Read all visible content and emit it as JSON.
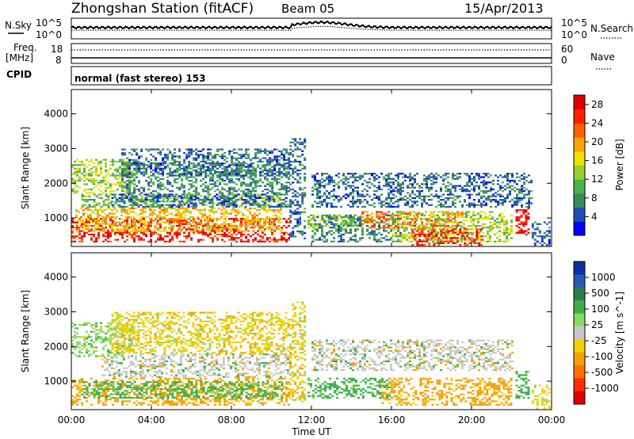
{
  "header": {
    "station": "Zhongshan Station (fitACF)",
    "beam": "Beam 05",
    "date": "15/Apr/2013"
  },
  "top_panels": {
    "nsky_label": "N.Sky",
    "nsky_ticks": [
      "10^5",
      "10^0"
    ],
    "nsearch_label": "N.Search",
    "nsearch_ticks": [
      "10^5",
      "10^0"
    ],
    "freq_label": "Freq.",
    "freq_unit": "[MHz]",
    "freq_ticks": [
      "18",
      "8"
    ],
    "nave_label": "Nave",
    "nave_ticks": [
      "60",
      "0"
    ],
    "cpid_label": "CPID",
    "cpid_text": "normal (fast stereo) 153"
  },
  "colors": {
    "power_scale": [
      "#0000ff",
      "#1f4fb5",
      "#3c8a5a",
      "#4caf50",
      "#9acd32",
      "#f0e000",
      "#ffa500",
      "#ff6000",
      "#ff2000",
      "#e00000"
    ],
    "velocity_scale": [
      "#1030a0",
      "#2858b0",
      "#2e7d4f",
      "#3fae49",
      "#8bd86a",
      "#c8c8c8",
      "#f0d000",
      "#f5a000",
      "#ff7000",
      "#ff3000",
      "#e00000"
    ]
  },
  "chart_data": [
    {
      "type": "heatmap",
      "panel": "power",
      "ylabel": "Slant Range [km]",
      "ylim": [
        180,
        4700
      ],
      "y_ticks": [
        "1000",
        "2000",
        "3000",
        "4000"
      ],
      "x_ticks": [
        "00:00",
        "04:00",
        "08:00",
        "12:00",
        "16:00",
        "20:00",
        "00:00"
      ],
      "colorbar": {
        "label": "Power [dB]",
        "ticks": [
          "4",
          "8",
          "12",
          "16",
          "20",
          "24",
          "28"
        ],
        "range": [
          0,
          30
        ]
      },
      "regions": [
        {
          "t0": 0.0,
          "t1": 10.9,
          "r0": 300,
          "r1": 1000,
          "level": 26
        },
        {
          "t0": 0.2,
          "t1": 10.5,
          "r0": 600,
          "r1": 1300,
          "level": 18
        },
        {
          "t0": 0.5,
          "t1": 10.8,
          "r0": 1300,
          "r1": 1700,
          "level": 12
        },
        {
          "t0": 2.0,
          "t1": 10.8,
          "r0": 1300,
          "r1": 1700,
          "level": 6
        },
        {
          "t0": 0.0,
          "t1": 3.0,
          "r0": 1700,
          "r1": 2700,
          "level": 14
        },
        {
          "t0": 2.5,
          "t1": 10.9,
          "r0": 1700,
          "r1": 2600,
          "level": 8
        },
        {
          "t0": 2.5,
          "t1": 10.9,
          "r0": 2200,
          "r1": 3000,
          "level": 6
        },
        {
          "t0": 10.9,
          "t1": 11.7,
          "r0": 400,
          "r1": 3300,
          "level": 6
        },
        {
          "t0": 11.8,
          "t1": 14.5,
          "r0": 700,
          "r1": 1100,
          "level": 14
        },
        {
          "t0": 12.0,
          "t1": 16.5,
          "r0": 300,
          "r1": 1100,
          "level": 8
        },
        {
          "t0": 14.5,
          "t1": 19.5,
          "r0": 700,
          "r1": 1200,
          "level": 22
        },
        {
          "t0": 16.0,
          "t1": 22.0,
          "r0": 300,
          "r1": 1200,
          "level": 14
        },
        {
          "t0": 17.0,
          "t1": 20.5,
          "r0": 200,
          "r1": 700,
          "level": 26
        },
        {
          "t0": 12.0,
          "t1": 23.0,
          "r0": 1300,
          "r1": 2300,
          "level": 6
        },
        {
          "t0": 22.2,
          "t1": 22.8,
          "r0": 500,
          "r1": 1300,
          "level": 28
        },
        {
          "t0": 23.0,
          "t1": 23.9,
          "r0": 200,
          "r1": 900,
          "level": 6
        }
      ]
    },
    {
      "type": "heatmap",
      "panel": "velocity",
      "ylabel": "Slant Range [km]",
      "ylim": [
        180,
        4700
      ],
      "y_ticks": [
        "1000",
        "2000",
        "3000",
        "4000"
      ],
      "x_ticks": [
        "00:00",
        "04:00",
        "08:00",
        "12:00",
        "16:00",
        "20:00",
        "00:00"
      ],
      "xlabel": "Time UT",
      "colorbar": {
        "label": "Velocity [m s^-1]",
        "ticks": [
          "1000",
          "500",
          "100",
          "25",
          "-25",
          "-100",
          "-500",
          "-1000"
        ],
        "levels": [
          1000,
          500,
          100,
          25,
          0,
          -25,
          -100,
          -500,
          -1000
        ]
      },
      "regions": [
        {
          "t0": 0.0,
          "t1": 10.9,
          "r0": 300,
          "r1": 1100,
          "level": -100
        },
        {
          "t0": 0.5,
          "t1": 10.5,
          "r0": 500,
          "r1": 1000,
          "level": 100
        },
        {
          "t0": 1.5,
          "t1": 10.9,
          "r0": 1100,
          "r1": 1800,
          "level": 0
        },
        {
          "t0": 0.0,
          "t1": 3.0,
          "r0": 1700,
          "r1": 2700,
          "level": 25
        },
        {
          "t0": 2.0,
          "t1": 10.9,
          "r0": 1800,
          "r1": 3000,
          "level": -25
        },
        {
          "t0": 10.9,
          "t1": 11.7,
          "r0": 400,
          "r1": 3300,
          "level": -25
        },
        {
          "t0": 11.8,
          "t1": 16.0,
          "r0": 500,
          "r1": 1100,
          "level": 100
        },
        {
          "t0": 15.5,
          "t1": 22.0,
          "r0": 300,
          "r1": 1100,
          "level": -100
        },
        {
          "t0": 12.0,
          "t1": 22.0,
          "r0": 1300,
          "r1": 2200,
          "level": 0
        },
        {
          "t0": 22.2,
          "t1": 22.9,
          "r0": 500,
          "r1": 1300,
          "level": 100
        },
        {
          "t0": 23.0,
          "t1": 23.9,
          "r0": 200,
          "r1": 900,
          "level": -25
        }
      ]
    }
  ]
}
